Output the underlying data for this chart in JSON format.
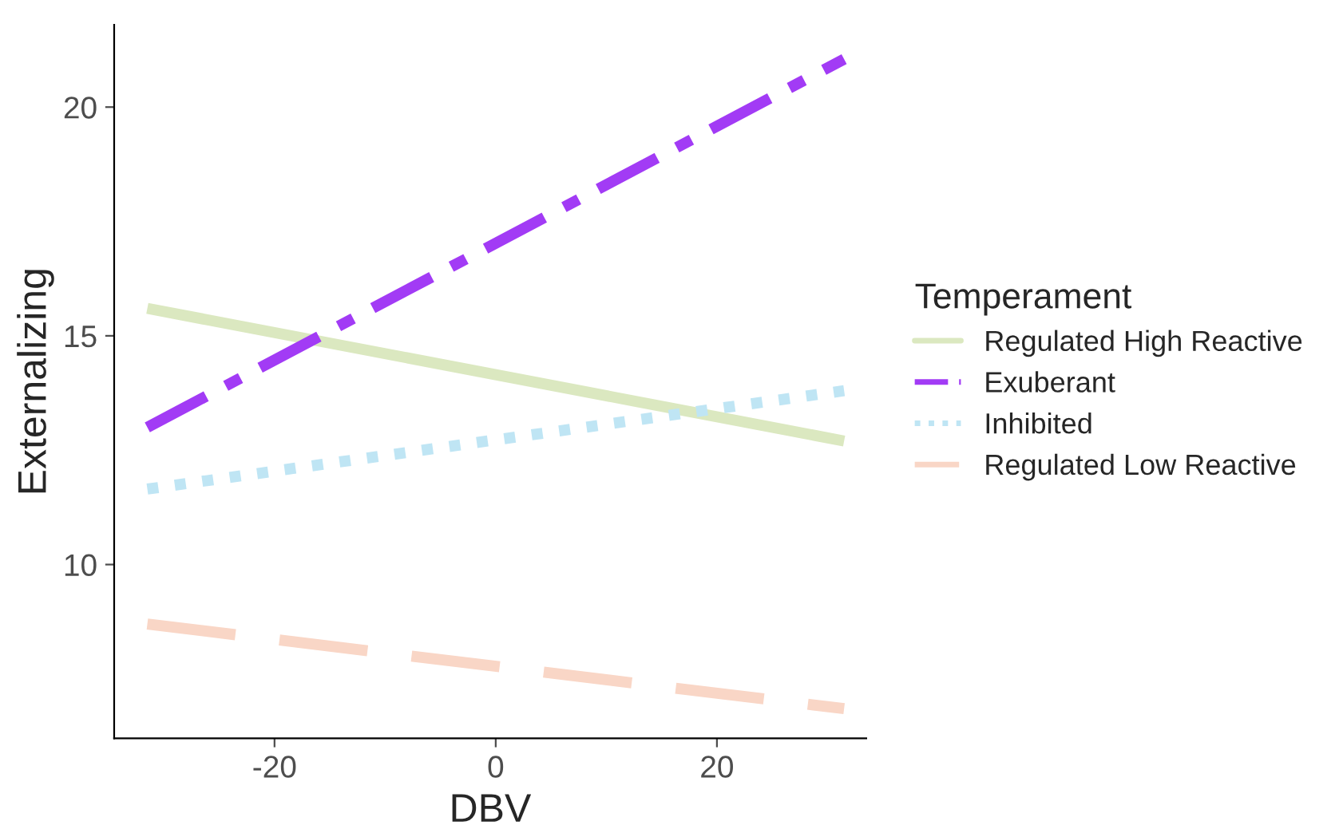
{
  "chart_data": {
    "type": "line",
    "xlabel": "DBV",
    "ylabel": "Externalizing",
    "legend_title": "Temperament",
    "xlim": [
      -34.5,
      33.5
    ],
    "ylim": [
      6.2,
      21.8
    ],
    "xticks": [
      -20,
      0,
      20
    ],
    "yticks": [
      10,
      15,
      20
    ],
    "grid": false,
    "legend": "right",
    "marker": "none",
    "x": [
      -31.5,
      31.5
    ],
    "series": [
      {
        "name": "Regulated High Reactive",
        "color": "#dbe8c0",
        "line_style": "solid",
        "values": [
          15.6,
          12.7
        ]
      },
      {
        "name": "Exuberant",
        "color": "#a23bf5",
        "line_style": "dashdot",
        "values": [
          13.0,
          21.05
        ]
      },
      {
        "name": "Inhibited",
        "color": "#bfe5f4",
        "line_style": "dotted",
        "values": [
          11.65,
          13.8
        ]
      },
      {
        "name": "Regulated Low Reactive",
        "color": "#f9d6c6",
        "line_style": "dashed",
        "values": [
          8.7,
          6.85
        ]
      }
    ]
  }
}
